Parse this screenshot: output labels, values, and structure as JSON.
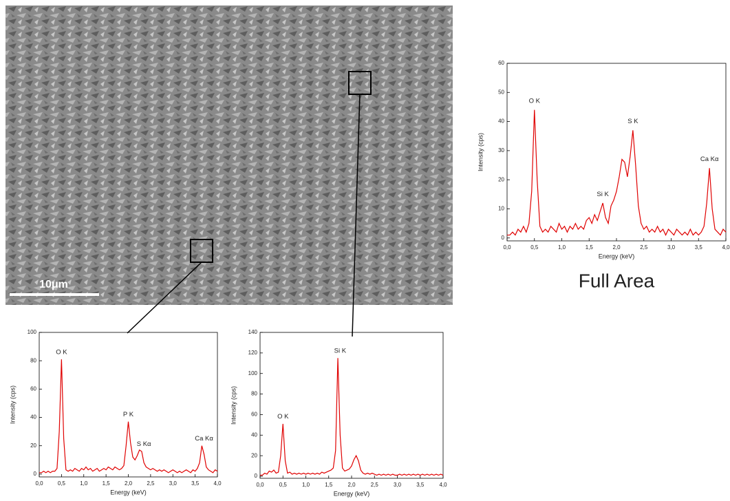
{
  "image": {
    "scale_bar": "10μm"
  },
  "chart_data": [
    {
      "type": "line",
      "color": "#e00000",
      "caption": "Full Area",
      "xlabel": "Energy (keV)",
      "ylabel": "Intensity (cps)",
      "xlim": [
        0,
        4
      ],
      "ylim": [
        -1,
        60
      ],
      "xticks": [
        {
          "value": 0,
          "label": "0,0"
        },
        {
          "value": 0.5,
          "label": "0,5"
        },
        {
          "value": 1,
          "label": "1,0"
        },
        {
          "value": 1.5,
          "label": "1,5"
        },
        {
          "value": 2,
          "label": "2,0"
        },
        {
          "value": 2.5,
          "label": "2,5"
        },
        {
          "value": 3,
          "label": "3,0"
        },
        {
          "value": 3.5,
          "label": "3,5"
        },
        {
          "value": 4,
          "label": "4,0"
        }
      ],
      "yticks": [
        0,
        10,
        20,
        30,
        40,
        50,
        60
      ],
      "annotations": [
        {
          "text": "O K",
          "x": 0.5,
          "y": 47
        },
        {
          "text": "Si K",
          "x": 1.75,
          "y": 15
        },
        {
          "text": "S K",
          "x": 2.3,
          "y": 40
        },
        {
          "text": "Ca Kα",
          "x": 3.7,
          "y": 27
        }
      ],
      "x": [
        0,
        0.05,
        0.1,
        0.15,
        0.2,
        0.25,
        0.3,
        0.35,
        0.4,
        0.45,
        0.5,
        0.55,
        0.6,
        0.65,
        0.7,
        0.75,
        0.8,
        0.85,
        0.9,
        0.95,
        1,
        1.05,
        1.1,
        1.15,
        1.2,
        1.25,
        1.3,
        1.35,
        1.4,
        1.45,
        1.5,
        1.55,
        1.6,
        1.65,
        1.7,
        1.75,
        1.8,
        1.85,
        1.9,
        1.95,
        2,
        2.05,
        2.1,
        2.15,
        2.2,
        2.25,
        2.3,
        2.35,
        2.4,
        2.45,
        2.5,
        2.55,
        2.6,
        2.65,
        2.7,
        2.75,
        2.8,
        2.85,
        2.9,
        2.95,
        3,
        3.05,
        3.1,
        3.15,
        3.2,
        3.25,
        3.3,
        3.35,
        3.4,
        3.45,
        3.5,
        3.55,
        3.6,
        3.65,
        3.7,
        3.75,
        3.8,
        3.85,
        3.9,
        3.95,
        4
      ],
      "values": [
        1,
        1,
        2,
        1,
        3,
        2,
        4,
        2,
        5,
        16,
        44,
        20,
        4,
        2,
        3,
        2,
        4,
        3,
        2,
        5,
        3,
        4,
        2,
        4,
        3,
        5,
        3,
        4,
        3,
        6,
        7,
        5,
        8,
        6,
        9,
        12,
        7,
        5,
        11,
        13,
        16,
        21,
        27,
        26,
        21,
        28,
        37,
        25,
        11,
        5,
        3,
        4,
        2,
        3,
        2,
        4,
        2,
        3,
        1,
        3,
        2,
        1,
        3,
        2,
        1,
        2,
        1,
        3,
        1,
        2,
        1,
        2,
        4,
        12,
        24,
        10,
        3,
        2,
        1,
        3,
        2
      ]
    },
    {
      "type": "line",
      "color": "#e00000",
      "xlabel": "Energy (keV)",
      "ylabel": "Intensity (cps)",
      "xlim": [
        0,
        4
      ],
      "ylim": [
        -2,
        100
      ],
      "xticks": [
        {
          "value": 0,
          "label": "0,0"
        },
        {
          "value": 0.5,
          "label": "0,5"
        },
        {
          "value": 1,
          "label": "1,0"
        },
        {
          "value": 1.5,
          "label": "1,5"
        },
        {
          "value": 2,
          "label": "2,0"
        },
        {
          "value": 2.5,
          "label": "2,5"
        },
        {
          "value": 3,
          "label": "3,0"
        },
        {
          "value": 3.5,
          "label": "3,5"
        },
        {
          "value": 4,
          "label": "4,0"
        }
      ],
      "yticks": [
        0,
        20,
        40,
        60,
        80,
        100
      ],
      "annotations": [
        {
          "text": "O K",
          "x": 0.5,
          "y": 86
        },
        {
          "text": "P K",
          "x": 2.0,
          "y": 42
        },
        {
          "text": "S Kα",
          "x": 2.35,
          "y": 21
        },
        {
          "text": "Ca Kα",
          "x": 3.7,
          "y": 25
        }
      ],
      "x": [
        0,
        0.05,
        0.1,
        0.15,
        0.2,
        0.25,
        0.3,
        0.35,
        0.4,
        0.45,
        0.5,
        0.55,
        0.6,
        0.65,
        0.7,
        0.75,
        0.8,
        0.85,
        0.9,
        0.95,
        1,
        1.05,
        1.1,
        1.15,
        1.2,
        1.25,
        1.3,
        1.35,
        1.4,
        1.45,
        1.5,
        1.55,
        1.6,
        1.65,
        1.7,
        1.75,
        1.8,
        1.85,
        1.9,
        1.95,
        2,
        2.05,
        2.1,
        2.15,
        2.2,
        2.25,
        2.3,
        2.35,
        2.4,
        2.45,
        2.5,
        2.55,
        2.6,
        2.65,
        2.7,
        2.75,
        2.8,
        2.85,
        2.9,
        2.95,
        3,
        3.05,
        3.1,
        3.15,
        3.2,
        3.25,
        3.3,
        3.35,
        3.4,
        3.45,
        3.5,
        3.55,
        3.6,
        3.65,
        3.7,
        3.75,
        3.8,
        3.85,
        3.9,
        3.95,
        4
      ],
      "values": [
        1,
        1,
        2,
        1,
        2,
        1,
        2,
        2,
        4,
        30,
        81,
        25,
        3,
        2,
        3,
        2,
        4,
        3,
        2,
        4,
        3,
        5,
        3,
        4,
        2,
        3,
        4,
        2,
        3,
        4,
        3,
        5,
        4,
        3,
        5,
        4,
        3,
        4,
        6,
        20,
        37,
        22,
        12,
        10,
        13,
        17,
        16,
        8,
        5,
        4,
        3,
        4,
        3,
        2,
        3,
        2,
        3,
        2,
        1,
        2,
        3,
        2,
        1,
        2,
        1,
        2,
        3,
        2,
        1,
        3,
        2,
        4,
        8,
        20,
        14,
        5,
        3,
        2,
        1,
        3,
        2
      ]
    },
    {
      "type": "line",
      "color": "#e00000",
      "xlabel": "Energy (keV)",
      "ylabel": "Intensity (cps)",
      "xlim": [
        0,
        4
      ],
      "ylim": [
        -2,
        140
      ],
      "xticks": [
        {
          "value": 0,
          "label": "0,0"
        },
        {
          "value": 0.5,
          "label": "0,5"
        },
        {
          "value": 1,
          "label": "1,0"
        },
        {
          "value": 1.5,
          "label": "1,5"
        },
        {
          "value": 2,
          "label": "2,0"
        },
        {
          "value": 2.5,
          "label": "2,5"
        },
        {
          "value": 3,
          "label": "3,0"
        },
        {
          "value": 3.5,
          "label": "3,5"
        },
        {
          "value": 4,
          "label": "4,0"
        }
      ],
      "yticks": [
        0,
        20,
        40,
        60,
        80,
        100,
        120,
        140
      ],
      "annotations": [
        {
          "text": "O K",
          "x": 0.5,
          "y": 58
        },
        {
          "text": "Si K",
          "x": 1.75,
          "y": 122
        }
      ],
      "x": [
        0,
        0.05,
        0.1,
        0.15,
        0.2,
        0.25,
        0.3,
        0.35,
        0.4,
        0.45,
        0.5,
        0.55,
        0.6,
        0.65,
        0.7,
        0.75,
        0.8,
        0.85,
        0.9,
        0.95,
        1,
        1.05,
        1.1,
        1.15,
        1.2,
        1.25,
        1.3,
        1.35,
        1.4,
        1.45,
        1.5,
        1.55,
        1.6,
        1.65,
        1.7,
        1.75,
        1.8,
        1.85,
        1.9,
        1.95,
        2,
        2.05,
        2.1,
        2.15,
        2.2,
        2.25,
        2.3,
        2.35,
        2.4,
        2.45,
        2.5,
        2.55,
        2.6,
        2.65,
        2.7,
        2.75,
        2.8,
        2.85,
        2.9,
        2.95,
        3,
        3.05,
        3.1,
        3.15,
        3.2,
        3.25,
        3.3,
        3.35,
        3.4,
        3.45,
        3.5,
        3.55,
        3.6,
        3.65,
        3.7,
        3.75,
        3.8,
        3.85,
        3.9,
        3.95,
        4
      ],
      "values": [
        1,
        1,
        3,
        2,
        5,
        4,
        6,
        3,
        4,
        20,
        51,
        15,
        3,
        4,
        2,
        3,
        2,
        3,
        2,
        3,
        2,
        3,
        2,
        3,
        2,
        3,
        2,
        4,
        3,
        4,
        5,
        6,
        8,
        25,
        115,
        40,
        8,
        5,
        6,
        7,
        10,
        16,
        20,
        15,
        6,
        3,
        2,
        3,
        2,
        3,
        2,
        1,
        2,
        1,
        2,
        1,
        2,
        1,
        2,
        1,
        1,
        2,
        1,
        2,
        1,
        2,
        1,
        2,
        1,
        2,
        1,
        2,
        1,
        2,
        1,
        2,
        1,
        2,
        1,
        2,
        1
      ]
    }
  ]
}
